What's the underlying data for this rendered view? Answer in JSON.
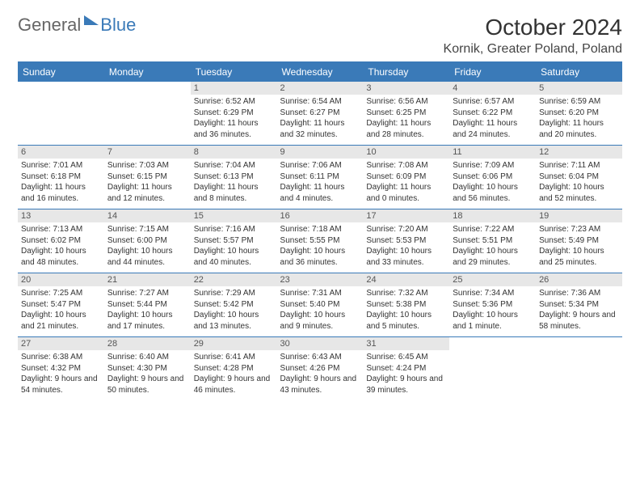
{
  "brand": {
    "part1": "General",
    "part2": "Blue"
  },
  "title": "October 2024",
  "location": "Kornik, Greater Poland, Poland",
  "colors": {
    "header_bg": "#3a7ab8",
    "daynum_bg": "#e7e7e7",
    "border": "#3a7ab8",
    "page_bg": "#ffffff",
    "text": "#333333"
  },
  "dayNames": [
    "Sunday",
    "Monday",
    "Tuesday",
    "Wednesday",
    "Thursday",
    "Friday",
    "Saturday"
  ],
  "weeks": [
    [
      null,
      null,
      {
        "n": "1",
        "sunrise": "6:52 AM",
        "sunset": "6:29 PM",
        "daylight": "11 hours and 36 minutes."
      },
      {
        "n": "2",
        "sunrise": "6:54 AM",
        "sunset": "6:27 PM",
        "daylight": "11 hours and 32 minutes."
      },
      {
        "n": "3",
        "sunrise": "6:56 AM",
        "sunset": "6:25 PM",
        "daylight": "11 hours and 28 minutes."
      },
      {
        "n": "4",
        "sunrise": "6:57 AM",
        "sunset": "6:22 PM",
        "daylight": "11 hours and 24 minutes."
      },
      {
        "n": "5",
        "sunrise": "6:59 AM",
        "sunset": "6:20 PM",
        "daylight": "11 hours and 20 minutes."
      }
    ],
    [
      {
        "n": "6",
        "sunrise": "7:01 AM",
        "sunset": "6:18 PM",
        "daylight": "11 hours and 16 minutes."
      },
      {
        "n": "7",
        "sunrise": "7:03 AM",
        "sunset": "6:15 PM",
        "daylight": "11 hours and 12 minutes."
      },
      {
        "n": "8",
        "sunrise": "7:04 AM",
        "sunset": "6:13 PM",
        "daylight": "11 hours and 8 minutes."
      },
      {
        "n": "9",
        "sunrise": "7:06 AM",
        "sunset": "6:11 PM",
        "daylight": "11 hours and 4 minutes."
      },
      {
        "n": "10",
        "sunrise": "7:08 AM",
        "sunset": "6:09 PM",
        "daylight": "11 hours and 0 minutes."
      },
      {
        "n": "11",
        "sunrise": "7:09 AM",
        "sunset": "6:06 PM",
        "daylight": "10 hours and 56 minutes."
      },
      {
        "n": "12",
        "sunrise": "7:11 AM",
        "sunset": "6:04 PM",
        "daylight": "10 hours and 52 minutes."
      }
    ],
    [
      {
        "n": "13",
        "sunrise": "7:13 AM",
        "sunset": "6:02 PM",
        "daylight": "10 hours and 48 minutes."
      },
      {
        "n": "14",
        "sunrise": "7:15 AM",
        "sunset": "6:00 PM",
        "daylight": "10 hours and 44 minutes."
      },
      {
        "n": "15",
        "sunrise": "7:16 AM",
        "sunset": "5:57 PM",
        "daylight": "10 hours and 40 minutes."
      },
      {
        "n": "16",
        "sunrise": "7:18 AM",
        "sunset": "5:55 PM",
        "daylight": "10 hours and 36 minutes."
      },
      {
        "n": "17",
        "sunrise": "7:20 AM",
        "sunset": "5:53 PM",
        "daylight": "10 hours and 33 minutes."
      },
      {
        "n": "18",
        "sunrise": "7:22 AM",
        "sunset": "5:51 PM",
        "daylight": "10 hours and 29 minutes."
      },
      {
        "n": "19",
        "sunrise": "7:23 AM",
        "sunset": "5:49 PM",
        "daylight": "10 hours and 25 minutes."
      }
    ],
    [
      {
        "n": "20",
        "sunrise": "7:25 AM",
        "sunset": "5:47 PM",
        "daylight": "10 hours and 21 minutes."
      },
      {
        "n": "21",
        "sunrise": "7:27 AM",
        "sunset": "5:44 PM",
        "daylight": "10 hours and 17 minutes."
      },
      {
        "n": "22",
        "sunrise": "7:29 AM",
        "sunset": "5:42 PM",
        "daylight": "10 hours and 13 minutes."
      },
      {
        "n": "23",
        "sunrise": "7:31 AM",
        "sunset": "5:40 PM",
        "daylight": "10 hours and 9 minutes."
      },
      {
        "n": "24",
        "sunrise": "7:32 AM",
        "sunset": "5:38 PM",
        "daylight": "10 hours and 5 minutes."
      },
      {
        "n": "25",
        "sunrise": "7:34 AM",
        "sunset": "5:36 PM",
        "daylight": "10 hours and 1 minute."
      },
      {
        "n": "26",
        "sunrise": "7:36 AM",
        "sunset": "5:34 PM",
        "daylight": "9 hours and 58 minutes."
      }
    ],
    [
      {
        "n": "27",
        "sunrise": "6:38 AM",
        "sunset": "4:32 PM",
        "daylight": "9 hours and 54 minutes."
      },
      {
        "n": "28",
        "sunrise": "6:40 AM",
        "sunset": "4:30 PM",
        "daylight": "9 hours and 50 minutes."
      },
      {
        "n": "29",
        "sunrise": "6:41 AM",
        "sunset": "4:28 PM",
        "daylight": "9 hours and 46 minutes."
      },
      {
        "n": "30",
        "sunrise": "6:43 AM",
        "sunset": "4:26 PM",
        "daylight": "9 hours and 43 minutes."
      },
      {
        "n": "31",
        "sunrise": "6:45 AM",
        "sunset": "4:24 PM",
        "daylight": "9 hours and 39 minutes."
      },
      null,
      null
    ]
  ],
  "labels": {
    "sunrise": "Sunrise:",
    "sunset": "Sunset:",
    "daylight": "Daylight:"
  }
}
